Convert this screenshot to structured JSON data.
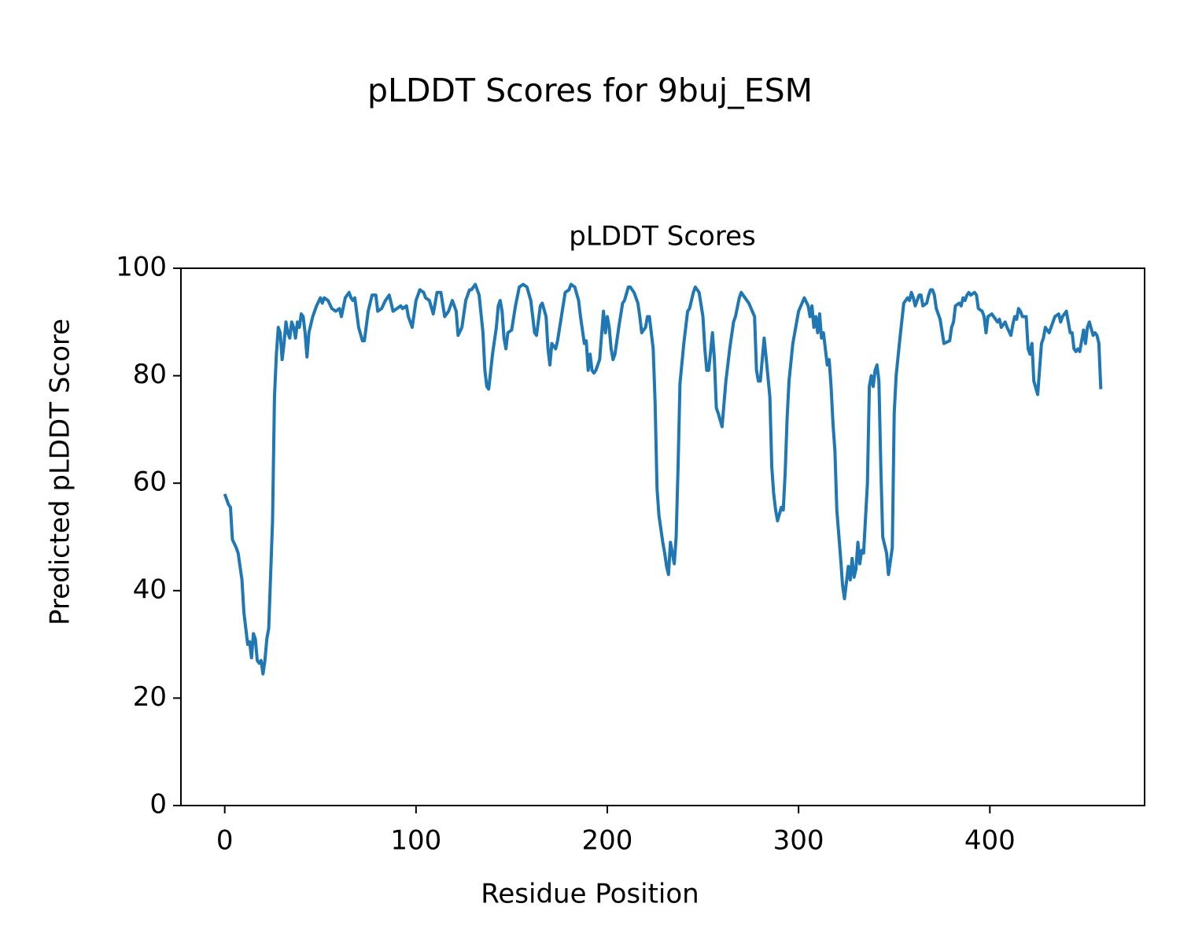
{
  "chart_data": {
    "type": "line",
    "title": "pLDDT Scores for 9buj_ESM",
    "subtitle": "pLDDT Scores",
    "xlabel": "Residue Position",
    "ylabel": "Predicted pLDDT Score",
    "xlim": [
      -22.9,
      480.9
    ],
    "ylim": [
      0,
      100
    ],
    "xticks": [
      0,
      100,
      200,
      300,
      400
    ],
    "yticks": [
      0,
      20,
      40,
      60,
      80,
      100
    ],
    "grid": false,
    "series": [
      {
        "color": "#1f77b4",
        "x": [
          0,
          2,
          3,
          4,
          6,
          7,
          9,
          10,
          12,
          13,
          14,
          15,
          16,
          17,
          18,
          19,
          20,
          21,
          22,
          23,
          24,
          25,
          26,
          27,
          28,
          29,
          30,
          31,
          32,
          33,
          34,
          35,
          36,
          37,
          38,
          39,
          40,
          41,
          42,
          43,
          44,
          46,
          48,
          50,
          51,
          52,
          54,
          56,
          58,
          60,
          61,
          63,
          65,
          66,
          67,
          68,
          70,
          72,
          73,
          75,
          77,
          79,
          80,
          82,
          84,
          86,
          87,
          88,
          90,
          92,
          93,
          95,
          96,
          98,
          100,
          102,
          104,
          105,
          107,
          109,
          111,
          113,
          115,
          117,
          119,
          121,
          122,
          124,
          126,
          128,
          129,
          131,
          133,
          135,
          136,
          137,
          138,
          140,
          142,
          143,
          144,
          145,
          146,
          147,
          148,
          150,
          152,
          154,
          156,
          158,
          160,
          161,
          162,
          163,
          165,
          166,
          168,
          169,
          170,
          171,
          173,
          174,
          176,
          178,
          180,
          181,
          183,
          185,
          186,
          188,
          189,
          190,
          191,
          192,
          193,
          194,
          196,
          198,
          199,
          200,
          201,
          202,
          203,
          204,
          206,
          208,
          209,
          211,
          212,
          214,
          216,
          217,
          218,
          220,
          221,
          222,
          223,
          224,
          225,
          226,
          227,
          229,
          230,
          231,
          232,
          233,
          234,
          235,
          236,
          237,
          238,
          240,
          242,
          243,
          245,
          246,
          248,
          250,
          251,
          252,
          253,
          255,
          256,
          257,
          258,
          260,
          262,
          264,
          266,
          267,
          269,
          270,
          272,
          274,
          277,
          278,
          279,
          280,
          281,
          282,
          283,
          285,
          286,
          287,
          288,
          289,
          291,
          292,
          293,
          294,
          295,
          297,
          298,
          300,
          303,
          305,
          306,
          307,
          308,
          309,
          310,
          311,
          312,
          313,
          315,
          316,
          317,
          318,
          319,
          320,
          322,
          323,
          324,
          326,
          327,
          328,
          329,
          330,
          331,
          332,
          333,
          334,
          336,
          337,
          338,
          339,
          340,
          341,
          342,
          343,
          344,
          346,
          347,
          349,
          350,
          351,
          353,
          355,
          356,
          357,
          358,
          359,
          360,
          361,
          363,
          364,
          365,
          367,
          368,
          369,
          370,
          371,
          372,
          374,
          376,
          379,
          380,
          381,
          382,
          384,
          385,
          386,
          387,
          388,
          389,
          390,
          392,
          393,
          394,
          396,
          397,
          398,
          399,
          401,
          402,
          404,
          405,
          406,
          407,
          408,
          409,
          411,
          412,
          413,
          414,
          415,
          416,
          417,
          418,
          419,
          420,
          421,
          422,
          423,
          425,
          427,
          428,
          429,
          430,
          431,
          434,
          436,
          437,
          438,
          440,
          441,
          442,
          443,
          444,
          445,
          446,
          447,
          449,
          450,
          451,
          452,
          454,
          455,
          456,
          457,
          458
        ],
        "values": [
          58,
          56,
          55.5,
          49.5,
          48,
          47,
          42,
          36,
          30,
          30.5,
          27.5,
          32,
          31,
          27,
          26.5,
          27,
          24.5,
          27,
          31,
          33,
          43,
          53,
          76,
          84,
          89,
          88,
          83,
          86,
          90,
          88,
          87,
          90,
          89,
          87,
          90,
          89,
          91.5,
          91,
          88,
          83.5,
          88,
          91,
          93,
          94.5,
          93.5,
          94.5,
          94,
          92.5,
          92,
          92.5,
          91,
          94.5,
          95.5,
          94.5,
          94,
          94.5,
          89,
          86.5,
          86.5,
          92,
          95,
          95,
          92,
          92.5,
          94,
          95,
          93.5,
          92,
          92.5,
          93,
          92.5,
          93,
          91,
          89,
          94,
          96,
          95.5,
          94.5,
          94,
          91.5,
          95.5,
          95.5,
          91,
          92,
          94,
          92,
          87.5,
          89,
          94,
          96,
          96,
          97,
          95,
          88,
          81,
          78,
          77.5,
          84,
          89,
          93,
          94,
          92,
          87,
          85,
          88,
          88.5,
          93,
          96.5,
          97,
          96.5,
          94,
          91,
          88,
          87.5,
          93,
          93.5,
          91,
          85,
          82,
          86,
          85,
          86.5,
          91,
          95.5,
          96,
          97,
          96.5,
          94,
          91,
          86,
          86.5,
          81,
          84,
          81,
          80.5,
          81,
          83,
          92,
          88,
          91,
          89,
          85,
          83,
          84,
          89,
          93.5,
          94,
          96.5,
          96.5,
          95.5,
          93.5,
          91,
          88,
          89,
          91,
          91,
          88,
          85,
          75,
          59,
          54,
          49,
          47,
          44.5,
          43,
          49,
          47,
          45,
          50,
          63,
          78.5,
          86,
          92,
          92.5,
          95.5,
          96.5,
          95.5,
          91,
          85,
          81,
          81,
          88,
          83,
          74,
          73,
          70.5,
          79,
          85,
          90,
          91,
          94.5,
          95.5,
          94.5,
          93.5,
          91,
          81,
          79,
          79,
          83,
          87,
          83.5,
          76,
          63,
          58,
          55,
          53,
          55.5,
          55,
          62,
          72,
          79,
          86,
          88,
          92,
          94.5,
          93,
          91,
          93,
          89,
          91,
          88,
          91.5,
          87,
          88,
          82,
          83,
          78,
          71,
          66,
          55,
          46,
          41,
          38.5,
          44.5,
          42,
          46,
          42.5,
          44,
          49,
          45,
          47.5,
          47,
          60,
          78,
          80,
          78,
          81,
          82,
          79,
          63,
          50,
          47,
          43,
          48,
          73,
          80,
          87,
          93.5,
          94,
          94.5,
          94,
          95.5,
          94.5,
          93,
          95,
          95,
          93,
          93.5,
          95,
          96,
          96,
          95,
          92.5,
          90.5,
          86,
          86.5,
          89,
          90,
          93,
          93.5,
          93,
          94.5,
          94,
          95,
          95.5,
          95,
          95.5,
          95,
          92.5,
          92,
          91,
          88,
          91,
          91.5,
          91,
          90,
          90.5,
          89,
          89.5,
          90,
          89,
          87.5,
          89.5,
          91,
          90.5,
          92.5,
          92,
          91,
          91,
          91,
          85,
          84,
          86,
          79,
          76.5,
          86,
          87,
          89,
          88.5,
          88,
          91,
          91.5,
          90,
          91,
          92,
          90,
          88,
          88,
          85,
          84.5,
          85,
          84.5,
          88.5,
          86,
          89,
          90,
          87.5,
          88,
          87.5,
          86,
          77.5
        ]
      }
    ]
  }
}
